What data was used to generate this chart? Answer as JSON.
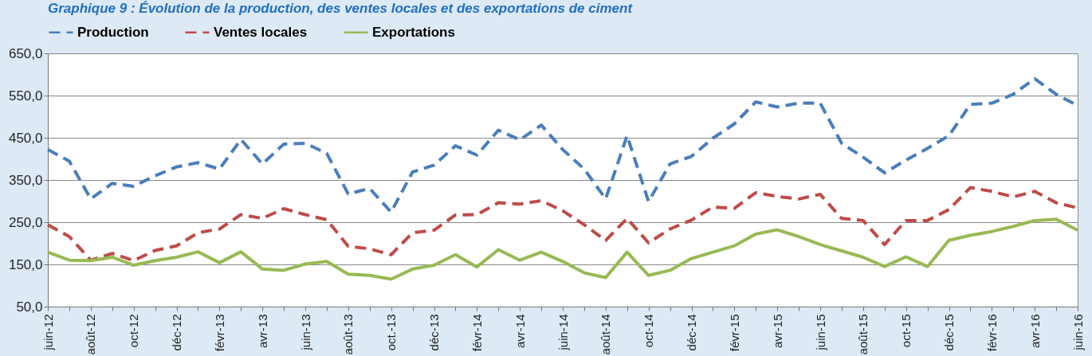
{
  "chart_data": {
    "type": "line",
    "title": "Graphique 9 : Évolution de la production, des ventes locales et des exportations de ciment",
    "categories": [
      "juin-12",
      null,
      "août-12",
      null,
      "oct-12",
      null,
      "déc-12",
      null,
      "févr-13",
      null,
      "avr-13",
      null,
      "juin-13",
      null,
      "août-13",
      null,
      "oct.-13",
      null,
      "déc-13",
      null,
      "févr-14",
      null,
      "avr-14",
      null,
      "juin-14",
      null,
      "août-14",
      null,
      "oct-14",
      null,
      "déc-14",
      null,
      "févr-15",
      null,
      "avr-15",
      null,
      "juin-15",
      null,
      "août-15",
      null,
      "oct-15",
      null,
      "déc-15",
      null,
      "févr-16",
      null,
      "avr-16",
      null,
      "juin-16"
    ],
    "series": [
      {
        "name": "Production",
        "color": "#4a7ebb",
        "line_style": "dashed",
        "values": [
          422,
          395,
          305,
          342,
          335,
          360,
          381,
          391,
          376,
          446,
          388,
          435,
          437,
          413,
          317,
          330,
          274,
          369,
          385,
          431,
          409,
          468,
          445,
          480,
          422,
          376,
          305,
          455,
          299,
          388,
          406,
          449,
          483,
          535,
          523,
          532,
          532,
          437,
          404,
          367,
          397,
          425,
          455,
          529,
          532,
          553,
          590,
          553,
          526
        ]
      },
      {
        "name": "Ventes locales",
        "color": "#be4b48",
        "line_style": "dashed",
        "values": [
          244,
          216,
          160,
          176,
          159,
          183,
          194,
          225,
          234,
          268,
          259,
          282,
          268,
          256,
          193,
          187,
          173,
          225,
          231,
          267,
          268,
          296,
          293,
          301,
          277,
          244,
          207,
          259,
          201,
          234,
          255,
          286,
          283,
          320,
          311,
          305,
          316,
          259,
          254,
          197,
          254,
          254,
          280,
          332,
          323,
          310,
          323,
          296,
          284
        ]
      },
      {
        "name": "Exportations",
        "color": "#98b954",
        "line_style": "solid",
        "values": [
          179,
          160,
          159,
          167,
          148,
          159,
          167,
          180,
          154,
          180,
          139,
          136,
          151,
          157,
          127,
          124,
          115,
          139,
          148,
          173,
          144,
          185,
          160,
          179,
          157,
          130,
          119,
          179,
          124,
          136,
          164,
          179,
          194,
          222,
          232,
          216,
          197,
          182,
          167,
          145,
          168,
          145,
          207,
          219,
          228,
          240,
          254,
          257,
          231
        ]
      }
    ],
    "ylim": [
      50,
      650
    ],
    "yticks": [
      {
        "value": 50,
        "label": "50,0"
      },
      {
        "value": 150,
        "label": "150,0"
      },
      {
        "value": 250,
        "label": "250,0"
      },
      {
        "value": 350,
        "label": "350,0"
      },
      {
        "value": 450,
        "label": "450,0"
      },
      {
        "value": 550,
        "label": "550,0"
      },
      {
        "value": 650,
        "label": "650,0"
      }
    ],
    "grid": "y",
    "legend": "top",
    "marker": "none"
  }
}
